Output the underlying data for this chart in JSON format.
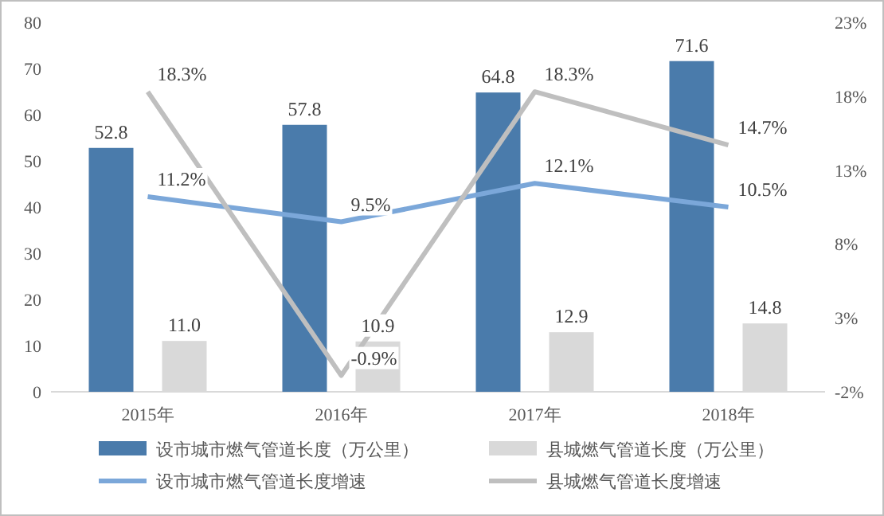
{
  "chart_data": {
    "type": "bar",
    "categories": [
      "2015年",
      "2016年",
      "2017年",
      "2018年"
    ],
    "series": [
      {
        "name": "设市城市燃气管道长度（万公里）",
        "color": "#4a7bab",
        "values": [
          52.8,
          57.8,
          64.8,
          71.6
        ],
        "value_labels": [
          "52.8",
          "57.8",
          "64.8",
          "71.6"
        ]
      },
      {
        "name": "县城燃气管道长度（万公里）",
        "color": "#d9d9d9",
        "values": [
          11.0,
          10.9,
          12.9,
          14.8
        ],
        "value_labels": [
          "11.0",
          "10.9",
          "12.9",
          "14.8"
        ]
      },
      {
        "name": "设市城市燃气管道长度增速",
        "type": "line",
        "axis": "y2",
        "color": "#7ba7d9",
        "values": [
          11.2,
          9.5,
          12.1,
          10.5
        ],
        "value_labels": [
          "11.2%",
          "9.5%",
          "12.1%",
          "10.5%"
        ]
      },
      {
        "name": "县城燃气管道长度增速",
        "type": "line",
        "axis": "y2",
        "color": "#bfbfbf",
        "values": [
          18.3,
          -0.9,
          18.3,
          14.7
        ],
        "value_labels": [
          "18.3%",
          "-0.9%",
          "18.3%",
          "14.7%"
        ]
      }
    ],
    "ylim": [
      0,
      80
    ],
    "yticks": [
      0,
      10,
      20,
      30,
      40,
      50,
      60,
      70,
      80
    ],
    "y2lim": [
      -2,
      23
    ],
    "y2ticks": [
      {
        "value": -2,
        "label": "-2%"
      },
      {
        "value": 3,
        "label": "3%"
      },
      {
        "value": 8,
        "label": "8%"
      },
      {
        "value": 13,
        "label": "13%"
      },
      {
        "value": 18,
        "label": "18%"
      },
      {
        "value": 23,
        "label": "23%"
      }
    ],
    "legend": "bottom"
  }
}
